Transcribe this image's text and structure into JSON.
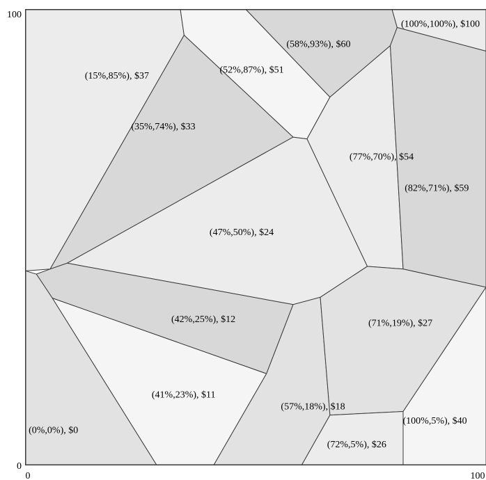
{
  "chart_data": {
    "type": "voronoi",
    "title": "",
    "xlabel": "",
    "ylabel": "",
    "xlim": [
      0,
      100
    ],
    "ylim": [
      0,
      100
    ],
    "ticks": {
      "x_min": "0",
      "x_max": "100",
      "y_min": "0",
      "y_max": "100"
    },
    "fill_shades": [
      "#f5f5f5",
      "#ececec",
      "#e2e2e2",
      "#d8d8d8"
    ],
    "cells": [
      {
        "label": "(15%,85%), $37",
        "shade": 1,
        "poly": [
          [
            0,
            42.6
          ],
          [
            5.3,
            43.0
          ],
          [
            34.4,
            94.4
          ],
          [
            33.6,
            100
          ],
          [
            0,
            100
          ]
        ]
      },
      {
        "label": "(52%,87%), $51",
        "shade": 0,
        "poly": [
          [
            33.6,
            100
          ],
          [
            47.9,
            100
          ],
          [
            66.1,
            80.8
          ],
          [
            61.1,
            71.6
          ],
          [
            58.1,
            72.0
          ],
          [
            34.4,
            94.4
          ]
        ]
      },
      {
        "label": "(58%,93%), $60",
        "shade": 3,
        "poly": [
          [
            47.9,
            100
          ],
          [
            79.6,
            100
          ],
          [
            80.7,
            96.1
          ],
          [
            79.2,
            92.1
          ],
          [
            66.1,
            80.8
          ]
        ]
      },
      {
        "label": "(100%,100%), $100",
        "shade": 1,
        "poly": [
          [
            79.6,
            100
          ],
          [
            100,
            100
          ],
          [
            100,
            90.9
          ],
          [
            80.7,
            96.1
          ]
        ]
      },
      {
        "label": "(35%,74%), $33",
        "shade": 3,
        "poly": [
          [
            34.4,
            94.4
          ],
          [
            58.1,
            72.0
          ],
          [
            9.0,
            44.3
          ],
          [
            5.3,
            43.0
          ]
        ]
      },
      {
        "label": "(77%,70%), $54",
        "shade": 1,
        "poly": [
          [
            61.1,
            71.6
          ],
          [
            66.1,
            80.8
          ],
          [
            79.2,
            92.1
          ],
          [
            82.0,
            43.0
          ],
          [
            74.2,
            43.6
          ]
        ]
      },
      {
        "label": "(82%,71%), $59",
        "shade": 3,
        "poly": [
          [
            80.7,
            96.1
          ],
          [
            100,
            90.9
          ],
          [
            100,
            39.0
          ],
          [
            82.0,
            43.0
          ],
          [
            79.2,
            92.1
          ]
        ]
      },
      {
        "label": "(47%,50%), $24",
        "shade": 1,
        "poly": [
          [
            58.1,
            72.0
          ],
          [
            61.1,
            71.6
          ],
          [
            74.2,
            43.6
          ],
          [
            64.0,
            36.8
          ],
          [
            58.1,
            35.2
          ],
          [
            9.0,
            44.3
          ]
        ]
      },
      {
        "label": "(42%,25%), $12",
        "shade": 3,
        "poly": [
          [
            2.3,
            41.9
          ],
          [
            5.3,
            43.0
          ],
          [
            9.0,
            44.3
          ],
          [
            58.1,
            35.2
          ],
          [
            52.3,
            20.0
          ],
          [
            5.8,
            36.6
          ]
        ]
      },
      {
        "label": "(0%,0%), $0",
        "shade": 2,
        "poly": [
          [
            0,
            0
          ],
          [
            0,
            42.6
          ],
          [
            2.3,
            41.9
          ],
          [
            5.8,
            36.6
          ],
          [
            28.4,
            0
          ]
        ]
      },
      {
        "label": "(41%,23%), $11",
        "shade": 0,
        "poly": [
          [
            5.8,
            36.6
          ],
          [
            52.3,
            20.0
          ],
          [
            40.9,
            0
          ],
          [
            28.4,
            0
          ]
        ]
      },
      {
        "label": "(57%,18%), $18",
        "shade": 2,
        "poly": [
          [
            52.3,
            20.0
          ],
          [
            58.1,
            35.2
          ],
          [
            64.0,
            36.8
          ],
          [
            66.1,
            10.9
          ],
          [
            60.0,
            0
          ],
          [
            40.9,
            0
          ]
        ]
      },
      {
        "label": "(71%,19%), $27",
        "shade": 2,
        "poly": [
          [
            64.0,
            36.8
          ],
          [
            74.2,
            43.6
          ],
          [
            82.0,
            43.0
          ],
          [
            100,
            39.0
          ],
          [
            82.0,
            11.7
          ],
          [
            66.1,
            10.9
          ]
        ]
      },
      {
        "label": "(72%,5%), $26",
        "shade": 1,
        "poly": [
          [
            60.0,
            0
          ],
          [
            66.1,
            10.9
          ],
          [
            82.0,
            11.7
          ],
          [
            82.0,
            0
          ]
        ]
      },
      {
        "label": "(100%,5%), $40",
        "shade": 0,
        "poly": [
          [
            82.0,
            0
          ],
          [
            82.0,
            11.7
          ],
          [
            100,
            39.0
          ],
          [
            100,
            0
          ]
        ]
      }
    ],
    "label_points": [
      [
        19.8,
        85.6
      ],
      [
        49.1,
        86.9
      ],
      [
        63.6,
        92.6
      ],
      [
        90.1,
        97.0
      ],
      [
        29.9,
        74.5
      ],
      [
        77.3,
        67.8
      ],
      [
        89.3,
        60.9
      ],
      [
        46.9,
        51.2
      ],
      [
        38.6,
        32.1
      ],
      [
        6.0,
        7.7
      ],
      [
        34.3,
        15.5
      ],
      [
        62.4,
        12.9
      ],
      [
        81.4,
        31.3
      ],
      [
        71.9,
        4.6
      ],
      [
        88.9,
        9.8
      ]
    ]
  }
}
